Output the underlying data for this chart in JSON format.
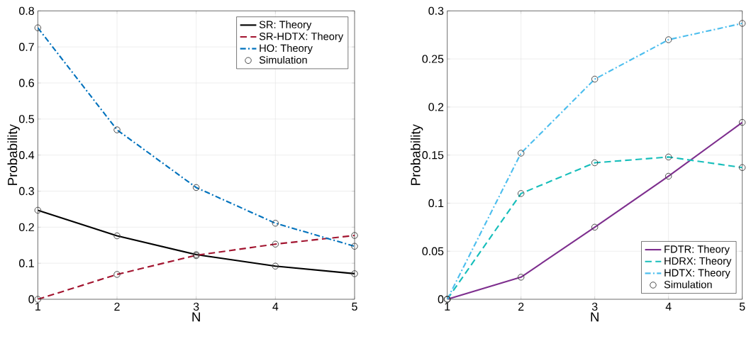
{
  "chart_data": [
    {
      "type": "line",
      "xlabel": "N",
      "ylabel": "Probability",
      "x": [
        1,
        2,
        3,
        4,
        5
      ],
      "xlim": [
        1,
        5
      ],
      "xticks": [
        1,
        2,
        3,
        4,
        5
      ],
      "ylim": [
        0,
        0.8
      ],
      "yticks": [
        0,
        0.1,
        0.2,
        0.3,
        0.4,
        0.5,
        0.6,
        0.7,
        0.8
      ],
      "grid": true,
      "legend": "top right",
      "series": [
        {
          "name": "SR: Theory",
          "color": "#000000",
          "line_style": "solid",
          "values": [
            0.247,
            0.176,
            0.124,
            0.092,
            0.071
          ]
        },
        {
          "name": "SR-HDTX: Theory",
          "color": "#a2142f",
          "line_style": "dashed",
          "values": [
            0,
            0.069,
            0.122,
            0.153,
            0.177
          ]
        },
        {
          "name": "HO: Theory",
          "color": "#0072bd",
          "line_style": "dashdot",
          "values": [
            0.753,
            0.47,
            0.31,
            0.211,
            0.147
          ]
        },
        {
          "name": "Simulation",
          "type": "scatter",
          "marker": "circle",
          "color": "#404040",
          "values": [
            0.247,
            0.176,
            0.121,
            0.092,
            0.071
          ]
        },
        {
          "type": "scatter",
          "marker": "circle",
          "color": "#404040",
          "values": [
            0,
            0.069,
            0.124,
            0.153,
            0.177
          ]
        },
        {
          "type": "scatter",
          "marker": "circle",
          "color": "#404040",
          "values": [
            0.753,
            0.47,
            0.31,
            0.211,
            0.147
          ]
        }
      ]
    },
    {
      "type": "line",
      "xlabel": "N",
      "ylabel": "Probability",
      "x": [
        1,
        2,
        3,
        4,
        5
      ],
      "xlim": [
        1,
        5
      ],
      "xticks": [
        1,
        2,
        3,
        4,
        5
      ],
      "ylim": [
        0,
        0.3
      ],
      "yticks": [
        0,
        0.05,
        0.1,
        0.15,
        0.2,
        0.25,
        0.3
      ],
      "grid": true,
      "legend": "bottom right",
      "series": [
        {
          "name": "FDTR: Theory",
          "color": "#7e2f8e",
          "line_style": "solid",
          "values": [
            0,
            0.023,
            0.075,
            0.128,
            0.184
          ]
        },
        {
          "name": "HDRX: Theory",
          "color": "#17bebb",
          "line_style": "dashed",
          "values": [
            0,
            0.11,
            0.142,
            0.148,
            0.137
          ]
        },
        {
          "name": "HDTX: Theory",
          "color": "#4dbeee",
          "line_style": "dashdot",
          "values": [
            0,
            0.152,
            0.229,
            0.27,
            0.287
          ]
        },
        {
          "name": "Simulation",
          "type": "scatter",
          "marker": "circle",
          "color": "#404040",
          "values": [
            0,
            0.023,
            0.075,
            0.128,
            0.184
          ]
        },
        {
          "type": "scatter",
          "marker": "circle",
          "color": "#404040",
          "values": [
            0,
            0.11,
            0.142,
            0.148,
            0.137
          ]
        },
        {
          "type": "scatter",
          "marker": "circle",
          "color": "#404040",
          "values": [
            0,
            0.152,
            0.229,
            0.27,
            0.287
          ]
        }
      ]
    }
  ]
}
